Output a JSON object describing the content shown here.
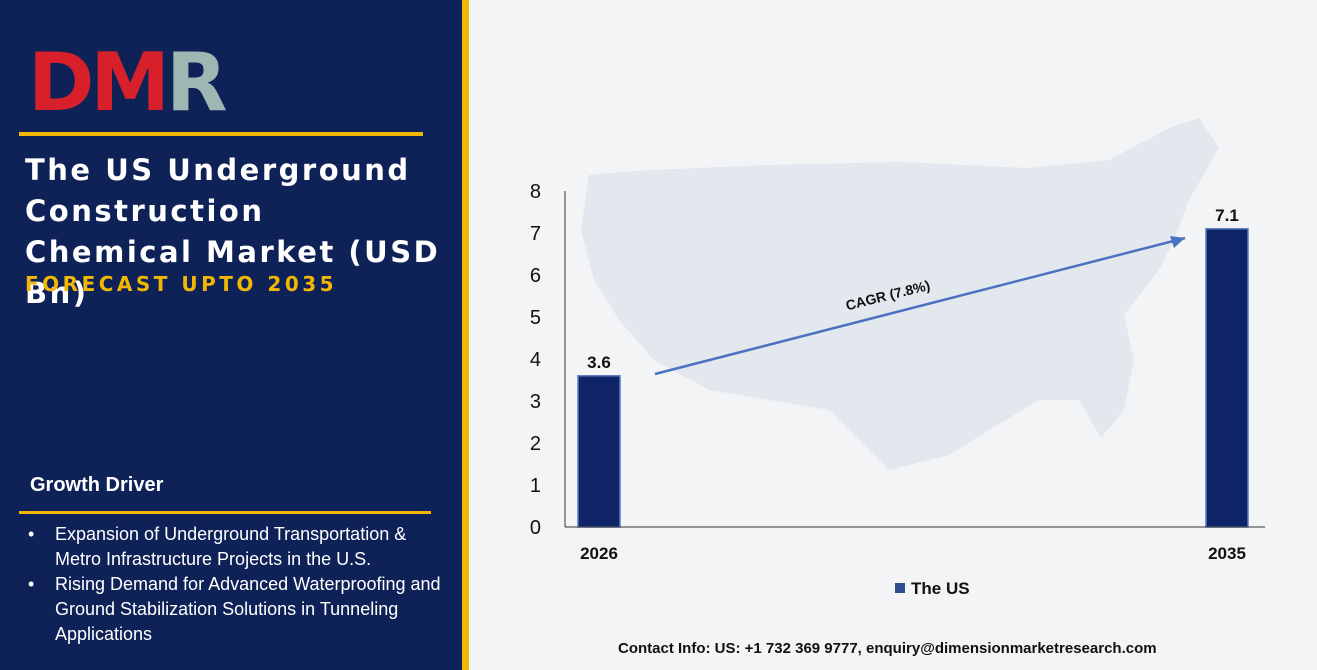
{
  "logo": {
    "text": "DMR",
    "d": "D",
    "m": "M",
    "r": "R",
    "colors": {
      "d": "#d8202a",
      "m": "#d8202a",
      "r": "#9db8b2"
    }
  },
  "header": {
    "title": "The US Underground Construction Chemical Market (USD Bn)",
    "subtitle": "FORECAST UPTO 2035"
  },
  "growth_driver": {
    "heading": "Growth Driver",
    "items": [
      "Expansion of Underground Transportation & Metro Infrastructure Projects in the U.S.",
      "Rising Demand for Advanced Waterproofing and Ground Stabilization Solutions in Tunneling Applications"
    ]
  },
  "contact": "Contact Info: US: +1 732 369 9777, enquiry@dimensionmarketresearch.com",
  "colors": {
    "navy": "#0f2258",
    "gold": "#f2b705",
    "bar": "#0f2466",
    "arrow": "#4a72c0"
  },
  "chart_data": {
    "type": "bar",
    "categories": [
      "2026",
      "2035"
    ],
    "series": [
      {
        "name": "The US",
        "values": [
          3.6,
          7.1
        ]
      }
    ],
    "data_labels": [
      "3.6",
      "7.1"
    ],
    "yticks": [
      "0",
      "1",
      "2",
      "3",
      "4",
      "5",
      "6",
      "7",
      "8"
    ],
    "ylim": [
      0,
      8
    ],
    "annotation": "CAGR (7.8%)",
    "legend": {
      "position": "bottom",
      "label": "The US"
    },
    "grid": false,
    "background_icon": "us-map-icon"
  }
}
